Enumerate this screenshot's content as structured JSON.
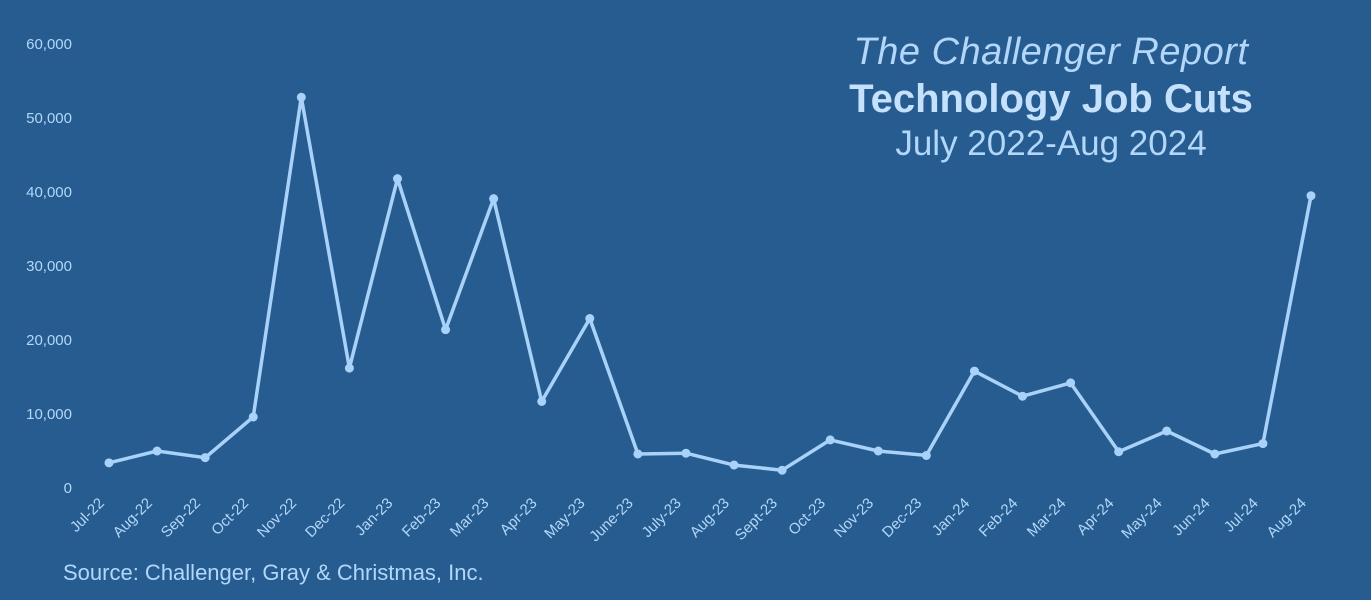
{
  "title": {
    "line1": "The Challenger Report",
    "line2": "Technology Job Cuts",
    "line3": "July 2022-Aug 2024"
  },
  "source": "Source: Challenger, Gray & Christmas, Inc.",
  "colors": {
    "background": "#265c8f",
    "line": "#a9d2fa",
    "text": "#b3d7fb"
  },
  "chart_data": {
    "type": "line",
    "categories": [
      "Jul-22",
      "Aug-22",
      "Sep-22",
      "Oct-22",
      "Nov-22",
      "Dec-22",
      "Jan-23",
      "Feb-23",
      "Mar-23",
      "Apr-23",
      "May-23",
      "June-23",
      "July-23",
      "Aug-23",
      "Sept-23",
      "Oct-23",
      "Nov-23",
      "Dec-23",
      "Jan-24",
      "Feb-24",
      "Mar-24",
      "Apr-24",
      "May-24",
      "Jun-24",
      "Jul-24",
      "Aug-24"
    ],
    "values": [
      3400,
      5000,
      4100,
      9600,
      52800,
      16200,
      41800,
      21400,
      39100,
      11700,
      22900,
      4600,
      4700,
      3100,
      2400,
      6500,
      5000,
      4400,
      15800,
      12400,
      14200,
      4900,
      7700,
      4600,
      6000,
      39500
    ],
    "yticks": [
      "0",
      "10,000",
      "20,000",
      "30,000",
      "40,000",
      "50,000",
      "60,000"
    ],
    "ylim": [
      0,
      60000
    ],
    "grid": false,
    "legend": "none"
  }
}
